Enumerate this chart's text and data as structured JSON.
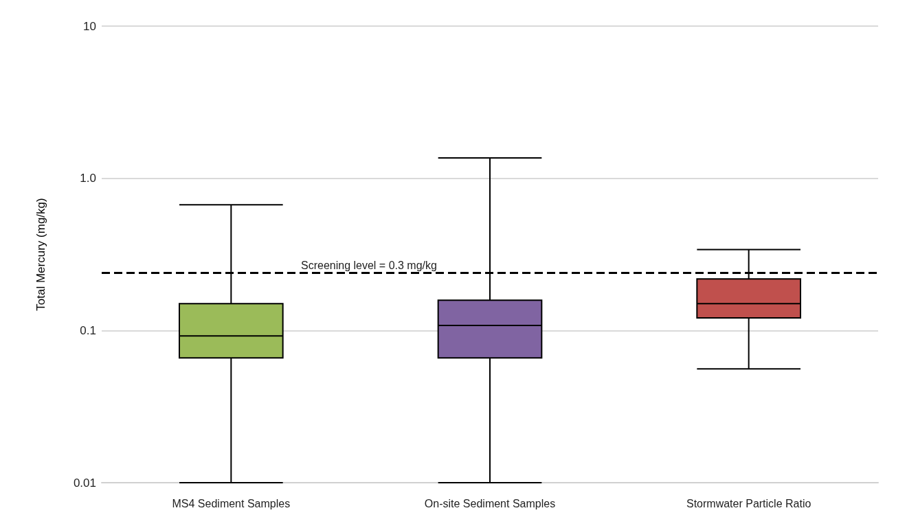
{
  "chart_data": {
    "type": "box",
    "ylabel": "Total Mercury (mg/kg)",
    "categories": [
      "MS4 Sediment Samples",
      "On-site Sediment Samples",
      "Stormwater Particle Ratio"
    ],
    "colors": [
      "#9bbb59",
      "#8064a2",
      "#c0504d"
    ],
    "boxes": [
      {
        "low": 0.01,
        "q1": 0.066,
        "median": 0.092,
        "q3": 0.15,
        "high": 0.67
      },
      {
        "low": 0.01,
        "q1": 0.066,
        "median": 0.108,
        "q3": 0.158,
        "high": 1.36
      },
      {
        "low": 0.056,
        "q1": 0.121,
        "median": 0.15,
        "q3": 0.218,
        "high": 0.34
      }
    ],
    "log": "y",
    "ylim": [
      0.01,
      10
    ],
    "yticks": [
      0.01,
      0.1,
      {
        "value": 1,
        "label": "1.0"
      },
      10
    ],
    "grid": "y",
    "ref_lines": [
      {
        "axis": "y",
        "value": 0.24,
        "color": "#000000",
        "line_style": "dashed"
      }
    ],
    "annotations": [
      "Screening level = 0.3 mg/kg"
    ]
  }
}
